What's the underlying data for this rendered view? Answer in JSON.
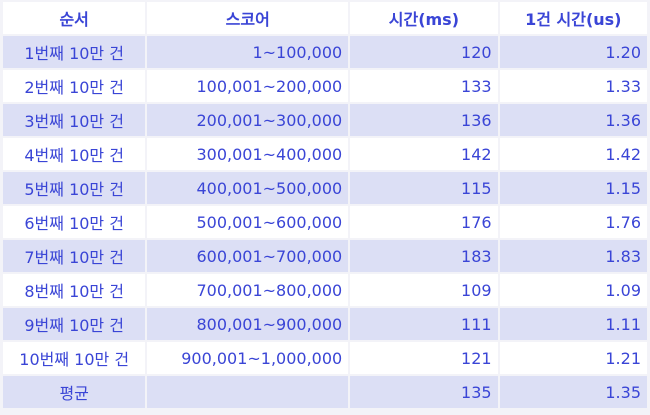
{
  "table": {
    "headers": [
      "순서",
      "스코어",
      "시간(ms)",
      "1건 시간(us)"
    ],
    "rows": [
      {
        "order": "1번째 10만 건",
        "score": "1~100,000",
        "time_ms": "120",
        "per_item_us": "1.20"
      },
      {
        "order": "2번째 10만 건",
        "score": "100,001~200,000",
        "time_ms": "133",
        "per_item_us": "1.33"
      },
      {
        "order": "3번째 10만 건",
        "score": "200,001~300,000",
        "time_ms": "136",
        "per_item_us": "1.36"
      },
      {
        "order": "4번째 10만 건",
        "score": "300,001~400,000",
        "time_ms": "142",
        "per_item_us": "1.42"
      },
      {
        "order": "5번째 10만 건",
        "score": "400,001~500,000",
        "time_ms": "115",
        "per_item_us": "1.15"
      },
      {
        "order": "6번째 10만 건",
        "score": "500,001~600,000",
        "time_ms": "176",
        "per_item_us": "1.76"
      },
      {
        "order": "7번째 10만 건",
        "score": "600,001~700,000",
        "time_ms": "183",
        "per_item_us": "1.83"
      },
      {
        "order": "8번째 10만 건",
        "score": "700,001~800,000",
        "time_ms": "109",
        "per_item_us": "1.09"
      },
      {
        "order": "9번째 10만 건",
        "score": "800,001~900,000",
        "time_ms": "111",
        "per_item_us": "1.11"
      },
      {
        "order": "10번째 10만 건",
        "score": "900,001~1,000,000",
        "time_ms": "121",
        "per_item_us": "1.21"
      },
      {
        "order": "평균",
        "score": "",
        "time_ms": "135",
        "per_item_us": "1.35"
      }
    ]
  },
  "colors": {
    "text": "#3a45d6",
    "stripe": "#dcdff5",
    "background": "#ffffff",
    "gap": "#f3f3f8"
  }
}
